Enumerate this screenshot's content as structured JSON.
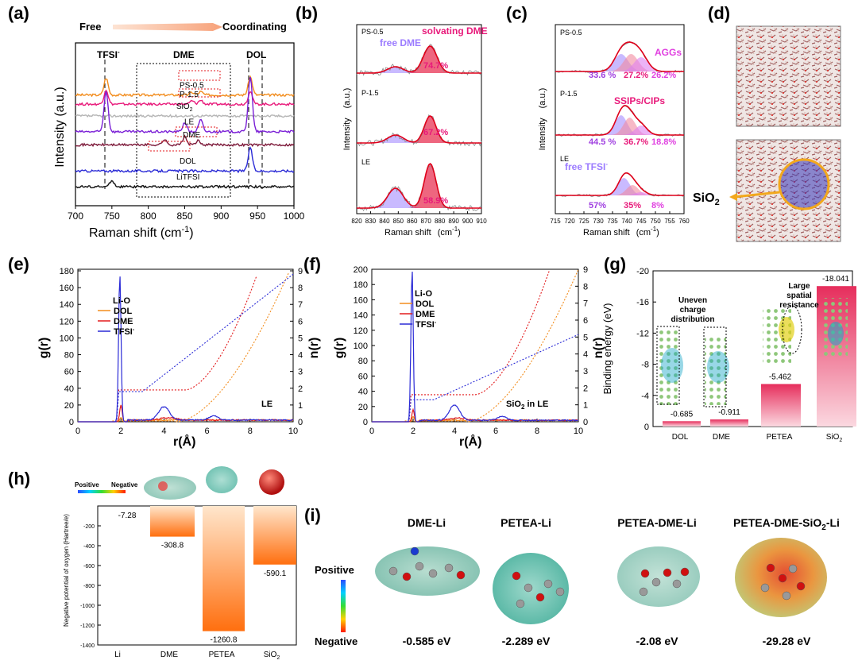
{
  "panel_labels": {
    "a": "(a)",
    "b": "(b)",
    "c": "(c)",
    "d": "(d)",
    "e": "(e)",
    "f": "(f)",
    "g": "(g)",
    "h": "(h)",
    "i": "(i)"
  },
  "colors": {
    "orange": "#f28c1c",
    "pink": "#e8197a",
    "gray": "#b5b5b5",
    "purple": "#7a1fd6",
    "darkred": "#7d1a3a",
    "blue": "#2a2ad6",
    "black": "#111111",
    "red": "#e31a1c",
    "magenta": "#cc33cc",
    "fitred": "#e0001a",
    "h_bar": "#ff7a1a"
  },
  "chart_data": [
    {
      "id": "a",
      "type": "line",
      "header_left": "Free",
      "header_right": "Coordinating",
      "xlabel": "Raman shift (cm",
      "xlabel_sup": "-1",
      "xlabel_end": ")",
      "ylabel": "Intensity (a.u.)",
      "xlim": [
        700,
        1000
      ],
      "xticks": [
        700,
        750,
        800,
        850,
        900,
        950,
        1000
      ],
      "regions": [
        "TFSI",
        "DME",
        "DOL"
      ],
      "tfsi_sup": "-",
      "series": [
        {
          "name": "PS-0.5",
          "color": "#f28c1c",
          "base": 7.6,
          "peaks": [
            [
              742,
              1.3
            ],
            [
              940,
              1.4
            ],
            [
              860,
              0.2
            ],
            [
              872,
              0.25
            ]
          ]
        },
        {
          "name": "P-1.5",
          "color": "#e8197a",
          "base": 6.9,
          "peaks": [
            [
              742,
              1.1
            ],
            [
              940,
              1.0
            ],
            [
              860,
              0.25
            ],
            [
              872,
              0.3
            ]
          ]
        },
        {
          "name": "SiO2",
          "color": "#b5b5b5",
          "base": 6.0,
          "peaks": []
        },
        {
          "name": "LE",
          "color": "#7a1fd6",
          "base": 4.8,
          "peaks": [
            [
              742,
              3.1
            ],
            [
              940,
              4.2
            ],
            [
              850,
              0.7
            ],
            [
              872,
              0.9
            ]
          ]
        },
        {
          "name": "DME",
          "color": "#7d1a3a",
          "base": 3.8,
          "peaks": [
            [
              822,
              0.4
            ],
            [
              850,
              0.6
            ],
            [
              868,
              0.3
            ]
          ]
        },
        {
          "name": "DOL",
          "color": "#2a2ad6",
          "base": 1.8,
          "peaks": [
            [
              940,
              1.8
            ]
          ]
        },
        {
          "name": "LiTFSI",
          "color": "#111111",
          "base": 0.6,
          "peaks": [
            [
              750,
              0.5
            ]
          ]
        }
      ]
    },
    {
      "id": "b",
      "type": "line",
      "xlabel": "Raman shift",
      "xlabel_unit": "(cm",
      "xlabel_sup": "-1",
      "xlabel_end": ")",
      "ylabel": "Intensity",
      "ylabel_unit": "(a.u.)",
      "xlim": [
        820,
        910
      ],
      "xticks": [
        820,
        830,
        840,
        850,
        860,
        870,
        880,
        890,
        900,
        910
      ],
      "annotations": {
        "free": "free DME",
        "solv": "solvating DME"
      },
      "panels": [
        {
          "name": "PS-0.5",
          "percent": "74.7%"
        },
        {
          "name": "P-1.5",
          "percent": "67.2%"
        },
        {
          "name": "LE",
          "percent": "58.9%"
        }
      ]
    },
    {
      "id": "c",
      "type": "line",
      "xlabel": "Raman shift",
      "xlabel_unit": "(cm",
      "xlabel_sup": "-1",
      "xlabel_end": ")",
      "ylabel": "Intensity",
      "ylabel_unit": "(a.u.)",
      "xlim": [
        715,
        760
      ],
      "xticks": [
        715,
        720,
        725,
        730,
        735,
        740,
        745,
        750,
        755,
        760
      ],
      "annotations": {
        "aggs": "AGGs",
        "ssips": "SSIPs/CIPs",
        "free": "free TFSI",
        "free_sup": "-"
      },
      "panels": [
        {
          "name": "PS-0.5",
          "p1": "33.6 %",
          "p2": "27.2%",
          "p3": "26.2%"
        },
        {
          "name": "P-1.5",
          "p1": "44.5 %",
          "p2": "36.7%",
          "p3": "18.8%"
        },
        {
          "name": "LE",
          "p1": "57%",
          "p2": "35%",
          "p3": "8%"
        }
      ]
    },
    {
      "id": "e",
      "type": "line",
      "xlabel": "r(Å)",
      "ylabel_left": "g(r)",
      "ylabel_right": "n(r)",
      "xlim": [
        0,
        10
      ],
      "ylim": [
        0,
        180
      ],
      "y2lim": [
        0,
        9
      ],
      "xticks": [
        0,
        2,
        4,
        6,
        8,
        10
      ],
      "yticks": [
        0,
        20,
        40,
        60,
        80,
        100,
        120,
        140,
        160,
        180
      ],
      "y2ticks": [
        0,
        1,
        2,
        3,
        4,
        5,
        6,
        7,
        8,
        9
      ],
      "legend_title": "Li-O",
      "corner_label": "LE",
      "series": [
        {
          "name": "DOL",
          "color": "#f28c1c",
          "peak": 2.0,
          "height": 5
        },
        {
          "name": "DME",
          "color": "#e31a1c",
          "peak": 2.0,
          "height": 20
        },
        {
          "name": "TFSI-",
          "color": "#2a2ad6",
          "peak": 1.95,
          "height": 176
        }
      ]
    },
    {
      "id": "f",
      "type": "line",
      "xlabel": "r(Å)",
      "ylabel_left": "g(r)",
      "ylabel_right": "n(r)",
      "xlim": [
        0,
        10
      ],
      "ylim": [
        0,
        200
      ],
      "y2lim": [
        0,
        9
      ],
      "xticks": [
        0,
        2,
        4,
        6,
        8,
        10
      ],
      "yticks": [
        0,
        20,
        40,
        60,
        80,
        100,
        120,
        140,
        160,
        180,
        200
      ],
      "y2ticks": [
        0,
        1,
        2,
        3,
        4,
        5,
        6,
        7,
        8,
        9
      ],
      "legend_title": "Li-O",
      "corner_label": "SiO2 in LE",
      "series": [
        {
          "name": "DOL",
          "color": "#f28c1c",
          "peak": 2.0,
          "height": 7
        },
        {
          "name": "DME",
          "color": "#e31a1c",
          "peak": 2.0,
          "height": 16
        },
        {
          "name": "TFSI-",
          "color": "#2a2ad6",
          "peak": 1.95,
          "height": 200
        }
      ]
    },
    {
      "id": "g",
      "type": "bar",
      "ylabel": "Binding energy (eV)",
      "categories": [
        "DOL",
        "DME",
        "PETEA",
        "SiO2"
      ],
      "values": [
        -0.685,
        -0.911,
        -5.462,
        -18.041
      ],
      "value_labels": [
        "-0.685",
        "-0.911",
        "-5.462",
        "-18.041"
      ],
      "ylim": [
        0,
        -20
      ],
      "yticks": [
        0,
        -4,
        -8,
        -12,
        -16,
        -20
      ],
      "annotations": {
        "uneven": "Uneven charge distribution",
        "large": "Large spatial resistance"
      }
    },
    {
      "id": "h",
      "type": "bar",
      "ylabel": "Negative potential of oxygen (Hartree/e)",
      "categories": [
        "Li",
        "DME",
        "PETEA",
        "SiO2"
      ],
      "values": [
        -7.28,
        -308.8,
        -1260.8,
        -590.1
      ],
      "value_labels": [
        "-7.28",
        "-308.8",
        "-1260.8",
        "-590.1"
      ],
      "ylim": [
        0,
        -1400
      ],
      "yticks": [
        -200,
        -400,
        -600,
        -800,
        -1000,
        -1200,
        -1400
      ],
      "legend_pos": "Positive",
      "legend_neg": "Negative"
    }
  ],
  "panel_i": {
    "positive": "Positive",
    "negative": "Negative",
    "molecules": [
      {
        "name": "DME-Li",
        "energy": "-0.585 eV"
      },
      {
        "name": "PETEA-Li",
        "energy": "-2.289 eV"
      },
      {
        "name": "PETEA-DME-Li",
        "energy": "-2.08 eV"
      },
      {
        "name": "PETEA-DME-SiO2-Li",
        "energy": "-29.28 eV"
      }
    ]
  },
  "panel_d": {
    "label": "SiO2"
  }
}
